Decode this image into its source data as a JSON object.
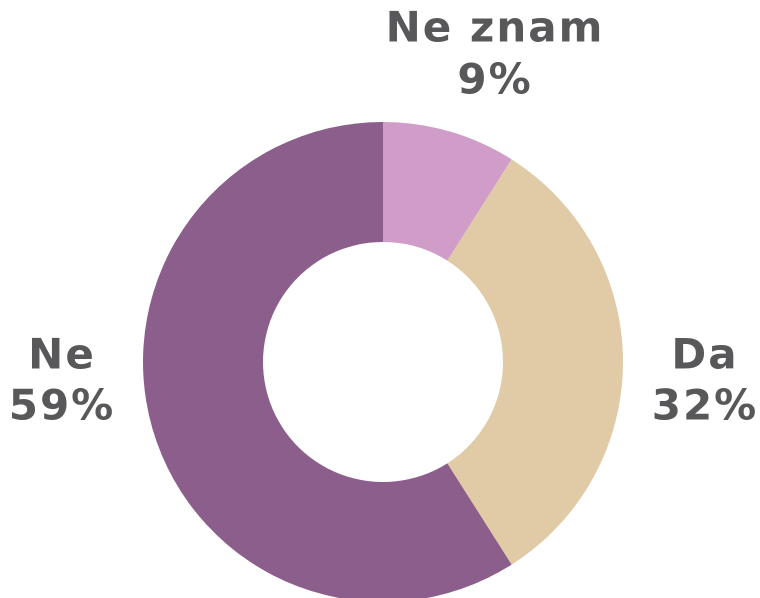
{
  "chart_data": {
    "type": "donut",
    "categories": [
      "Ne znam",
      "Da",
      "Ne"
    ],
    "values": [
      9,
      32,
      59
    ],
    "value_labels": [
      "9%",
      "32%",
      "59%"
    ],
    "colors": [
      "#d09dc8",
      "#e0cba6",
      "#8b5e8b"
    ]
  }
}
